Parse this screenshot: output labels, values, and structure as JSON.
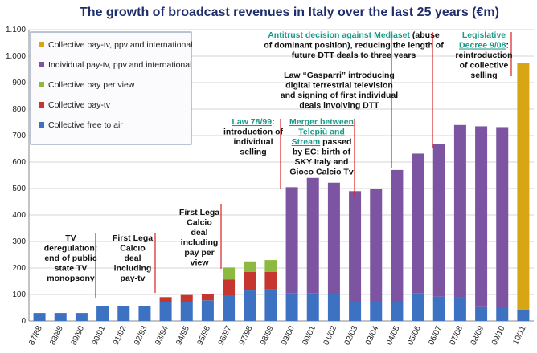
{
  "chart_data": {
    "type": "stacked_bar",
    "title": "The growth of broadcast revenues in Italy over the last 25 years (€m)",
    "categories": [
      "87/88",
      "88/89",
      "89/90",
      "90/91",
      "91/92",
      "92/93",
      "93/94",
      "94/95",
      "95/96",
      "96/97",
      "97/98",
      "98/99",
      "99/00",
      "00/01",
      "01/02",
      "02/03",
      "03/04",
      "04/05",
      "05/06",
      "06/07",
      "07/08",
      "08/09",
      "09/10",
      "10/11"
    ],
    "series": [
      {
        "name": "Collective free to air",
        "color": "#3d72c2",
        "values": [
          30,
          30,
          30,
          57,
          57,
          57,
          70,
          72,
          78,
          97,
          115,
          120,
          105,
          105,
          100,
          70,
          72,
          70,
          105,
          92,
          88,
          52,
          50,
          42
        ]
      },
      {
        "name": "Collective pay-tv",
        "color": "#c4362f",
        "values": [
          null,
          null,
          null,
          null,
          null,
          null,
          20,
          26,
          25,
          60,
          70,
          65,
          null,
          null,
          null,
          null,
          null,
          null,
          null,
          null,
          null,
          null,
          null,
          null
        ]
      },
      {
        "name": "Collective pay per view",
        "color": "#8db842",
        "values": [
          null,
          null,
          null,
          null,
          null,
          null,
          null,
          null,
          null,
          45,
          40,
          45,
          null,
          null,
          null,
          null,
          null,
          null,
          null,
          null,
          null,
          null,
          null,
          null
        ]
      },
      {
        "name": "Individual pay-tv, ppv and international",
        "color": "#7c54a2",
        "values": [
          null,
          null,
          null,
          null,
          null,
          null,
          null,
          null,
          null,
          null,
          null,
          null,
          400,
          435,
          422,
          420,
          425,
          500,
          527,
          576,
          652,
          683,
          682,
          null
        ]
      },
      {
        "name": "Collective pay-tv, ppv and international",
        "color": "#d8a514",
        "values": [
          null,
          null,
          null,
          null,
          null,
          null,
          null,
          null,
          null,
          null,
          null,
          null,
          null,
          null,
          null,
          null,
          null,
          null,
          null,
          null,
          null,
          null,
          null,
          933
        ]
      }
    ],
    "ylim": [
      0,
      1100
    ],
    "yticks": [
      0,
      100,
      200,
      300,
      400,
      500,
      600,
      700,
      800,
      900,
      {
        "value": 1000,
        "label": "1.000"
      },
      {
        "value": 1100,
        "label": "1.100"
      }
    ],
    "grid": true,
    "legend": "top-left",
    "annotations": [
      {
        "lines": [
          [
            "TV"
          ],
          [
            "deregulation:"
          ],
          [
            "end of public"
          ],
          [
            "state TV"
          ],
          [
            "monopsony"
          ]
        ]
      },
      {
        "lines": [
          [
            "First Lega"
          ],
          [
            "Calcio"
          ],
          [
            "deal"
          ],
          [
            "including"
          ],
          [
            "pay-tv"
          ]
        ]
      },
      {
        "lines": [
          [
            "First Lega"
          ],
          [
            "Calcio"
          ],
          [
            "deal"
          ],
          [
            "including"
          ],
          [
            "pay per"
          ],
          [
            "view"
          ]
        ]
      },
      {
        "lines": [
          [
            {
              "link": "Law 78/99"
            },
            ":"
          ],
          [
            "introduction of"
          ],
          [
            "individual"
          ],
          [
            "selling"
          ]
        ]
      },
      {
        "lines": [
          [
            {
              "link": "Merger between"
            }
          ],
          [
            {
              "link": "Telepiù and"
            }
          ],
          [
            {
              "link": "Stream"
            },
            " passed"
          ],
          [
            "by EC: birth of"
          ],
          [
            "SKY Italy and"
          ],
          [
            "Gioco Calcio Tv"
          ]
        ]
      },
      {
        "lines": [
          [
            "Law “Gasparri” introducing"
          ],
          [
            "digital terrestrial television"
          ],
          [
            "and signing of first individual"
          ],
          [
            "deals involving DTT"
          ]
        ]
      },
      {
        "lines": [
          [
            {
              "link": "Antitrust decision against Mediaset"
            },
            " (abuse"
          ],
          [
            "of dominant position), reducing the length of"
          ],
          [
            "future DTT deals to three years"
          ]
        ]
      },
      {
        "lines": [
          [
            {
              "link": "Legislative"
            }
          ],
          [
            {
              "link": "Decree 9/08"
            },
            ":"
          ],
          [
            "reintroduction"
          ],
          [
            "of collective"
          ],
          [
            "selling"
          ]
        ]
      }
    ]
  }
}
